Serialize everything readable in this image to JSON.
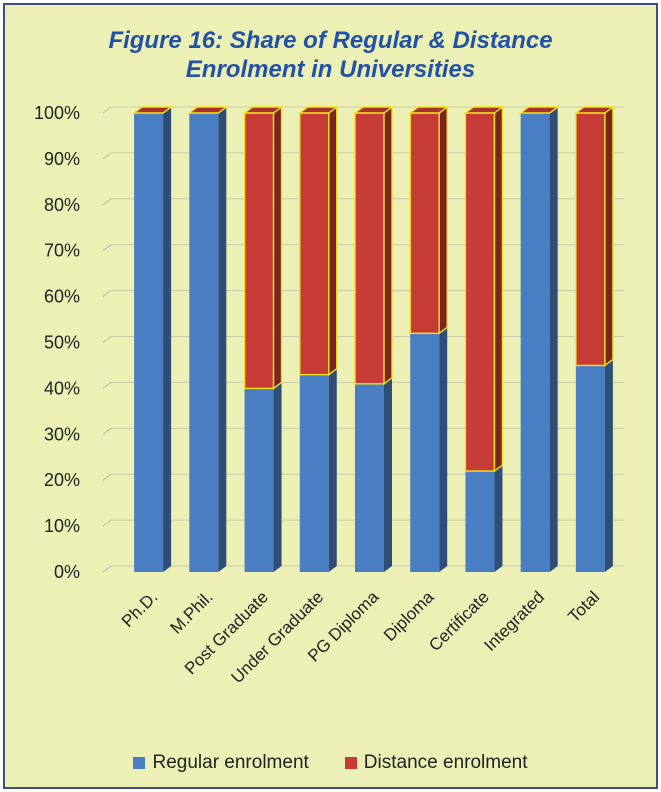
{
  "chart_data": {
    "type": "bar",
    "stacked": true,
    "three_d": true,
    "title_lines": [
      "Figure 16: Share of Regular & Distance",
      "Enrolment in Universities"
    ],
    "categories": [
      "Ph.D.",
      "M.Phil.",
      "Post Graduate",
      "Under Graduate",
      "PG Diploma",
      "Diploma",
      "Certificate",
      "Integrated",
      "Total"
    ],
    "series": [
      {
        "name": "Regular enrolment",
        "color": "#4a7ec2",
        "values": [
          100,
          100,
          40,
          43,
          41,
          52,
          22,
          100,
          45
        ]
      },
      {
        "name": "Distance enrolment",
        "color": "#c63b36",
        "values": [
          0,
          0,
          60,
          57,
          59,
          48,
          78,
          0,
          55
        ]
      }
    ],
    "ylim": [
      0,
      100
    ],
    "y_ticks": [
      "0%",
      "10%",
      "20%",
      "30%",
      "40%",
      "50%",
      "60%",
      "70%",
      "80%",
      "90%",
      "100%"
    ],
    "grid": true,
    "legend_position": "bottom"
  }
}
